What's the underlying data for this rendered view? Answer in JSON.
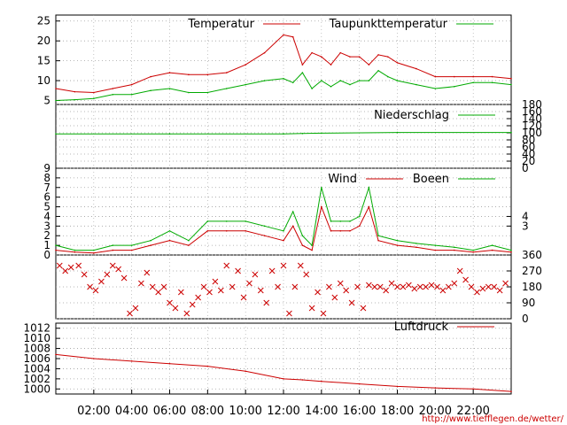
{
  "source_text": "http://www.tiefflegen.de/wetter/",
  "time_labels": [
    "02:00",
    "04:00",
    "06:00",
    "08:00",
    "10:00",
    "12:00",
    "14:00",
    "16:00",
    "18:00",
    "20:00",
    "22:00"
  ],
  "colors": {
    "red": "#cc0000",
    "green": "#00aa00",
    "axis": "#000000",
    "grid": "#a0a0a0"
  },
  "chart_data": [
    {
      "type": "line",
      "panel": "temperature",
      "x": [
        0,
        1,
        2,
        3,
        4,
        5,
        6,
        7,
        8,
        9,
        10,
        11,
        12,
        12.5,
        13,
        13.5,
        14,
        14.5,
        15,
        15.5,
        16,
        16.5,
        17,
        17.5,
        18,
        19,
        20,
        21,
        22,
        23,
        24
      ],
      "series": [
        {
          "name": "Temperatur",
          "color": "red",
          "values": [
            8,
            7.2,
            7,
            8,
            9,
            11,
            12,
            11.5,
            11.5,
            12,
            14,
            17,
            21.5,
            21,
            14,
            17,
            16,
            14,
            17,
            16,
            16,
            14,
            16.5,
            16,
            14.5,
            13,
            11,
            11,
            11,
            11,
            10.5
          ]
        },
        {
          "name": "Taupunkttemperatur",
          "color": "green",
          "values": [
            5,
            5.2,
            5.5,
            6.5,
            6.5,
            7.5,
            8,
            7,
            7,
            8,
            9,
            10,
            10.5,
            9.5,
            12,
            8,
            10,
            8.5,
            10,
            9,
            10,
            10,
            12.5,
            11,
            10,
            9,
            8,
            8.5,
            9.5,
            9.5,
            9
          ]
        }
      ],
      "yticks": [
        5,
        10,
        15,
        20,
        25
      ],
      "ylim": [
        4,
        26.5
      ]
    },
    {
      "type": "line",
      "panel": "precipitation",
      "x": [
        0,
        6,
        12,
        13,
        14,
        18,
        24
      ],
      "series": [
        {
          "name": "Niederschlag",
          "color": "green",
          "values": [
            97,
            97,
            97,
            98,
            99,
            101,
            101
          ]
        }
      ],
      "yticks_right": [
        0,
        20,
        40,
        60,
        80,
        100,
        120,
        140,
        160,
        180
      ],
      "ylim": [
        0,
        180
      ]
    },
    {
      "type": "line",
      "panel": "wind",
      "x": [
        0,
        1,
        2,
        3,
        4,
        5,
        6,
        7,
        8,
        9,
        10,
        11,
        12,
        12.5,
        13,
        13.5,
        14,
        14.5,
        15,
        15.5,
        16,
        16.5,
        17,
        18,
        19,
        20,
        21,
        22,
        23,
        24
      ],
      "series": [
        {
          "name": "Wind",
          "color": "red",
          "values": [
            0.5,
            0.3,
            0.2,
            0.5,
            0.5,
            1,
            1.5,
            1,
            2.5,
            2.5,
            2.5,
            2,
            1.5,
            3,
            1,
            0.5,
            5,
            2.5,
            2.5,
            2.5,
            3,
            5,
            1.5,
            1,
            0.8,
            0.5,
            0.5,
            0.3,
            0.5,
            0.3
          ]
        },
        {
          "name": "Boeen",
          "color": "green",
          "values": [
            1,
            0.5,
            0.5,
            1,
            1,
            1.5,
            2.5,
            1.5,
            3.5,
            3.5,
            3.5,
            3,
            2.5,
            4.5,
            2,
            1,
            7,
            3.5,
            3.5,
            3.5,
            4,
            7,
            2,
            1.5,
            1.2,
            1,
            0.8,
            0.5,
            1,
            0.5
          ]
        }
      ],
      "yticks": [
        0,
        1,
        2,
        3,
        4,
        5,
        6,
        7,
        8,
        9
      ],
      "yticks_right": [
        3,
        4
      ],
      "ylim": [
        0,
        9
      ]
    },
    {
      "type": "scatter",
      "panel": "wind_direction",
      "marker": "x",
      "color": "red",
      "x": [
        0.2,
        0.5,
        0.8,
        1.2,
        1.5,
        1.8,
        2.1,
        2.4,
        2.7,
        3.0,
        3.3,
        3.6,
        3.9,
        4.2,
        4.5,
        4.8,
        5.1,
        5.4,
        5.7,
        6.0,
        6.3,
        6.6,
        6.9,
        7.2,
        7.5,
        7.8,
        8.1,
        8.4,
        8.7,
        9.0,
        9.3,
        9.6,
        9.9,
        10.2,
        10.5,
        10.8,
        11.1,
        11.4,
        11.7,
        12.0,
        12.3,
        12.6,
        12.9,
        13.2,
        13.5,
        13.8,
        14.1,
        14.4,
        14.7,
        15.0,
        15.3,
        15.6,
        15.9,
        16.2,
        16.5,
        16.8,
        17.1,
        17.4,
        17.7,
        18.0,
        18.3,
        18.6,
        18.9,
        19.2,
        19.5,
        19.8,
        20.1,
        20.4,
        20.7,
        21.0,
        21.3,
        21.6,
        21.9,
        22.2,
        22.5,
        22.8,
        23.1,
        23.4,
        23.7
      ],
      "values": [
        300,
        270,
        290,
        300,
        250,
        180,
        160,
        210,
        250,
        300,
        280,
        230,
        30,
        60,
        200,
        260,
        180,
        150,
        180,
        90,
        60,
        150,
        30,
        80,
        120,
        180,
        150,
        210,
        160,
        300,
        180,
        270,
        120,
        200,
        250,
        160,
        90,
        270,
        180,
        300,
        30,
        180,
        300,
        250,
        60,
        150,
        30,
        180,
        120,
        200,
        160,
        90,
        180,
        60,
        190,
        180,
        180,
        160,
        200,
        180,
        180,
        190,
        170,
        180,
        180,
        190,
        180,
        160,
        180,
        200,
        270,
        220,
        180,
        150,
        170,
        180,
        180,
        160,
        200
      ],
      "yticks_right": [
        0,
        90,
        180,
        270,
        360
      ],
      "ylim": [
        0,
        360
      ]
    },
    {
      "type": "line",
      "panel": "pressure",
      "x": [
        0,
        2,
        4,
        6,
        8,
        10,
        12,
        13,
        14,
        16,
        18,
        20,
        22,
        24
      ],
      "series": [
        {
          "name": "Luftdruck",
          "color": "red",
          "values": [
            1006.8,
            1006,
            1005.5,
            1005,
            1004.5,
            1003.5,
            1002,
            1001.8,
            1001.5,
            1001,
            1000.5,
            1000.2,
            1000,
            999.5
          ]
        }
      ],
      "yticks": [
        1000,
        1002,
        1004,
        1006,
        1008,
        1010,
        1012
      ],
      "ylim": [
        999,
        1013
      ]
    }
  ]
}
